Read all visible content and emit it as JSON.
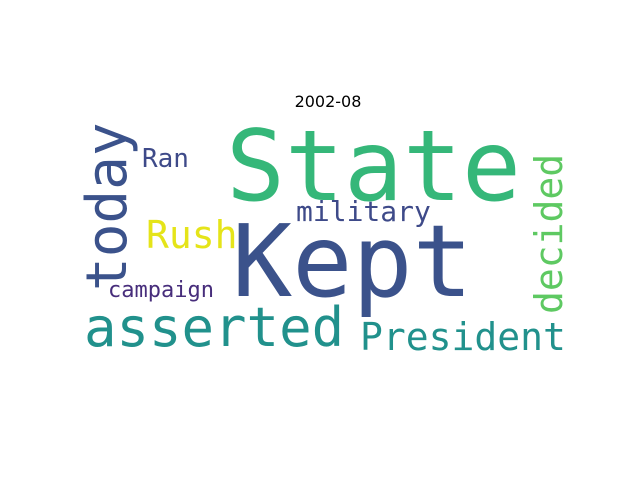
{
  "title": "2002-08",
  "colors": {
    "background": "#ffffff",
    "title": "#000000"
  },
  "words": [
    {
      "id": "state",
      "text": "State",
      "color": "#35b779",
      "orientation": "horizontal"
    },
    {
      "id": "kept",
      "text": "Kept",
      "color": "#3b528b",
      "orientation": "horizontal"
    },
    {
      "id": "asserted",
      "text": "asserted",
      "color": "#21918c",
      "orientation": "horizontal"
    },
    {
      "id": "today",
      "text": "today",
      "color": "#3b528b",
      "orientation": "vertical"
    },
    {
      "id": "president",
      "text": "President",
      "color": "#21918c",
      "orientation": "horizontal"
    },
    {
      "id": "decided",
      "text": "decided",
      "color": "#5ec962",
      "orientation": "vertical"
    },
    {
      "id": "rush",
      "text": "Rush",
      "color": "#e5e419",
      "orientation": "horizontal"
    },
    {
      "id": "military",
      "text": "military",
      "color": "#3e4a89",
      "orientation": "horizontal"
    },
    {
      "id": "ran",
      "text": "Ran",
      "color": "#3e4a89",
      "orientation": "horizontal"
    },
    {
      "id": "campaign",
      "text": "campaign",
      "color": "#472d7b",
      "orientation": "horizontal"
    }
  ]
}
